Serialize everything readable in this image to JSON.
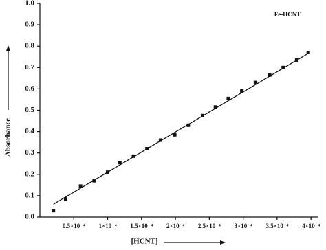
{
  "chart_data": {
    "type": "scatter",
    "legend_text": "Fe-HCNT",
    "x_label": "[HCNT]",
    "y_label": "Absorbance",
    "x": [
      2e-05,
      3.8e-05,
      6e-05,
      8e-05,
      0.0001,
      0.000118,
      0.000138,
      0.000158,
      0.000178,
      0.000199,
      0.000219,
      0.00024,
      0.000259,
      0.000278,
      0.000298,
      0.000318,
      0.000339,
      0.000359,
      0.000379,
      0.000396
    ],
    "series": [
      {
        "name": "Fe-HCNT",
        "color": "#111111",
        "values": [
          0.03,
          0.085,
          0.145,
          0.17,
          0.21,
          0.255,
          0.285,
          0.32,
          0.36,
          0.385,
          0.43,
          0.475,
          0.515,
          0.555,
          0.59,
          0.63,
          0.665,
          0.7,
          0.735,
          0.77
        ]
      }
    ],
    "fit_line": {
      "x": [
        2e-05,
        0.000398
      ],
      "y": [
        0.06,
        0.77
      ]
    },
    "xlim": [
      0,
      0.00041
    ],
    "ylim": [
      0,
      1
    ],
    "xticks": [
      {
        "value": 5e-05,
        "label": "0.5×10⁻⁴"
      },
      {
        "value": 0.0001,
        "label": "1×10⁻⁴"
      },
      {
        "value": 0.00015,
        "label": "1.5×10⁻⁴"
      },
      {
        "value": 0.0002,
        "label": "2×10⁻⁴"
      },
      {
        "value": 0.00025,
        "label": "2.5×10⁻⁴"
      },
      {
        "value": 0.0003,
        "label": "3×10⁻⁴"
      },
      {
        "value": 0.00035,
        "label": "3.5×10⁻⁴"
      },
      {
        "value": 0.0004,
        "label": "4×10⁻⁴"
      }
    ],
    "yticks": [
      {
        "value": 0,
        "label": "0.0"
      },
      0.1,
      0.2,
      0.3,
      0.4,
      0.5,
      0.6,
      0.7,
      0.8,
      0.9,
      {
        "value": 1,
        "label": "1.0"
      }
    ]
  }
}
